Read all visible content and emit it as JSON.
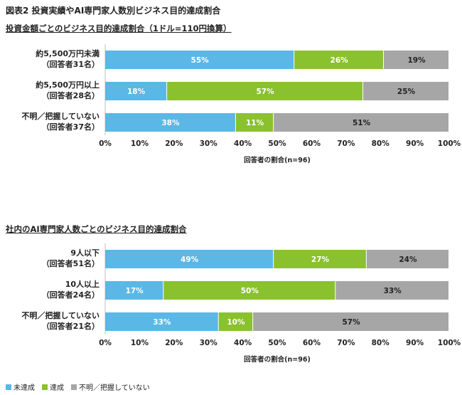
{
  "figure_title": "図表2 投資実績やAI専門家人数別ビジネス目的達成割合",
  "colors": {
    "achieved": "#5bb7e5",
    "not_achieved": "#8ac12f",
    "unknown": "#a6a6a6"
  },
  "legend": [
    {
      "label": "未達成",
      "color_key": "achieved"
    },
    {
      "label": "達成",
      "color_key": "not_achieved"
    },
    {
      "label": "不明／把握していない",
      "color_key": "unknown"
    }
  ],
  "chart_data": [
    {
      "type": "bar",
      "orientation": "horizontal",
      "stacked": true,
      "title": "投資金額ごとのビジネス目的達成割合（1ドル=110円換算）",
      "xlabel": "回答者の割合(n=96)",
      "xlim": [
        0,
        100
      ],
      "xticks": [
        "0%",
        "10%",
        "20%",
        "30%",
        "40%",
        "50%",
        "60%",
        "70%",
        "80%",
        "90%",
        "100%"
      ],
      "categories": [
        [
          "約5,500万円未満",
          "（回答者31名）"
        ],
        [
          "約5,500万円以上",
          "（回答者28名）"
        ],
        [
          "不明／把握していない",
          "（回答者37名）"
        ]
      ],
      "series": [
        {
          "name": "未達成",
          "color_key": "achieved",
          "values": [
            55,
            18,
            38
          ],
          "labels": [
            "55%",
            "18%",
            "38%"
          ]
        },
        {
          "name": "達成",
          "color_key": "not_achieved",
          "values": [
            26,
            57,
            11
          ],
          "labels": [
            "26%",
            "57%",
            "11%"
          ]
        },
        {
          "name": "不明／把握していない",
          "color_key": "unknown",
          "values": [
            19,
            25,
            51
          ],
          "labels": [
            "19%",
            "25%",
            "51%"
          ]
        }
      ]
    },
    {
      "type": "bar",
      "orientation": "horizontal",
      "stacked": true,
      "title": "社内のAI専門家人数ごとのビジネス目的達成割合",
      "xlabel": "回答者の割合(n=96)",
      "xlim": [
        0,
        100
      ],
      "xticks": [
        "0%",
        "10%",
        "20%",
        "30%",
        "40%",
        "50%",
        "60%",
        "70%",
        "80%",
        "90%",
        "100%"
      ],
      "categories": [
        [
          "9人以下",
          "（回答者51名）"
        ],
        [
          "10人以上",
          "（回答者24名）"
        ],
        [
          "不明／把握していない",
          "（回答者21名）"
        ]
      ],
      "series": [
        {
          "name": "未達成",
          "color_key": "achieved",
          "values": [
            49,
            17,
            33
          ],
          "labels": [
            "49%",
            "17%",
            "33%"
          ]
        },
        {
          "name": "達成",
          "color_key": "not_achieved",
          "values": [
            27,
            50,
            10
          ],
          "labels": [
            "27%",
            "50%",
            "10%"
          ]
        },
        {
          "name": "不明／把握していない",
          "color_key": "unknown",
          "values": [
            24,
            33,
            57
          ],
          "labels": [
            "24%",
            "33%",
            "57%"
          ]
        }
      ]
    }
  ]
}
